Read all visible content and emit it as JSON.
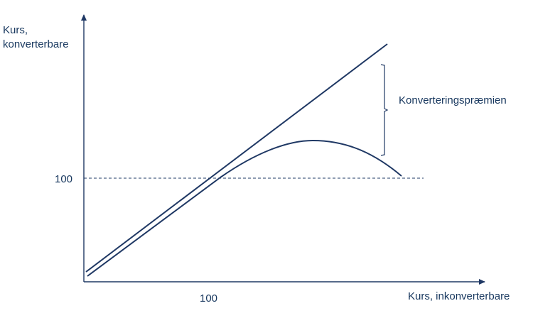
{
  "colors": {
    "ink": "#1f3864",
    "text": "#17375e"
  },
  "labels": {
    "y_axis_line1": "Kurs,",
    "y_axis_line2": "konverterbare",
    "x_axis": "Kurs, inkonverterbare",
    "y_tick_100": "100",
    "x_tick_100": "100",
    "premium": "Konverteringspræmien"
  }
}
